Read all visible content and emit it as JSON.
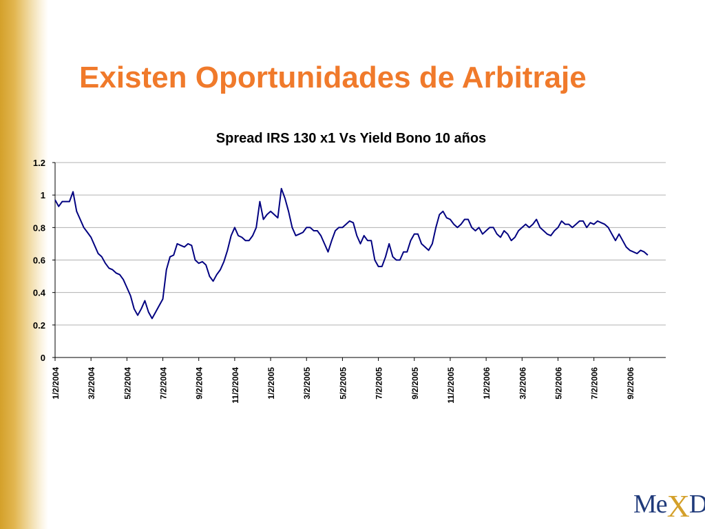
{
  "slide": {
    "title": "Existen Oportunidades de Arbitraje"
  },
  "logo": {
    "text_a": "Me",
    "text_x": "X",
    "text_b": "Der"
  },
  "chart_data": {
    "type": "line",
    "title": "Spread IRS 130 x1 Vs Yield Bono 10 años",
    "xlabel": "",
    "ylabel": "",
    "ylim": [
      0,
      1.2
    ],
    "yticks": [
      "0",
      "0.2",
      "0.4",
      "0.6",
      "0.8",
      "1",
      "1.2"
    ],
    "grid": "horizontal",
    "categories": [
      "1/2/2004",
      "3/2/2004",
      "5/2/2004",
      "7/2/2004",
      "9/2/2004",
      "11/2/2004",
      "1/2/2005",
      "3/2/2005",
      "5/2/2005",
      "7/2/2005",
      "9/2/2005",
      "11/2/2005",
      "1/2/2006",
      "3/2/2006",
      "5/2/2006",
      "7/2/2006",
      "9/2/2006"
    ],
    "series": [
      {
        "color": "#000080",
        "points": [
          [
            0.0,
            0.97
          ],
          [
            0.1,
            0.93
          ],
          [
            0.2,
            0.96
          ],
          [
            0.3,
            0.96
          ],
          [
            0.4,
            0.96
          ],
          [
            0.5,
            1.02
          ],
          [
            0.6,
            0.9
          ],
          [
            0.7,
            0.85
          ],
          [
            0.8,
            0.8
          ],
          [
            0.9,
            0.77
          ],
          [
            1.0,
            0.74
          ],
          [
            1.1,
            0.69
          ],
          [
            1.2,
            0.64
          ],
          [
            1.3,
            0.62
          ],
          [
            1.4,
            0.58
          ],
          [
            1.5,
            0.55
          ],
          [
            1.6,
            0.54
          ],
          [
            1.7,
            0.52
          ],
          [
            1.8,
            0.51
          ],
          [
            1.9,
            0.48
          ],
          [
            2.0,
            0.43
          ],
          [
            2.1,
            0.38
          ],
          [
            2.2,
            0.3
          ],
          [
            2.3,
            0.26
          ],
          [
            2.4,
            0.3
          ],
          [
            2.5,
            0.35
          ],
          [
            2.6,
            0.28
          ],
          [
            2.7,
            0.24
          ],
          [
            2.8,
            0.28
          ],
          [
            2.9,
            0.32
          ],
          [
            3.0,
            0.36
          ],
          [
            3.1,
            0.54
          ],
          [
            3.2,
            0.62
          ],
          [
            3.3,
            0.63
          ],
          [
            3.4,
            0.7
          ],
          [
            3.5,
            0.69
          ],
          [
            3.6,
            0.68
          ],
          [
            3.7,
            0.7
          ],
          [
            3.8,
            0.69
          ],
          [
            3.9,
            0.6
          ],
          [
            4.0,
            0.58
          ],
          [
            4.1,
            0.59
          ],
          [
            4.2,
            0.57
          ],
          [
            4.3,
            0.5
          ],
          [
            4.4,
            0.47
          ],
          [
            4.5,
            0.51
          ],
          [
            4.6,
            0.54
          ],
          [
            4.7,
            0.59
          ],
          [
            4.8,
            0.66
          ],
          [
            4.9,
            0.75
          ],
          [
            5.0,
            0.8
          ],
          [
            5.1,
            0.75
          ],
          [
            5.2,
            0.74
          ],
          [
            5.3,
            0.72
          ],
          [
            5.4,
            0.72
          ],
          [
            5.5,
            0.75
          ],
          [
            5.6,
            0.8
          ],
          [
            5.7,
            0.96
          ],
          [
            5.8,
            0.85
          ],
          [
            5.9,
            0.88
          ],
          [
            6.0,
            0.9
          ],
          [
            6.1,
            0.88
          ],
          [
            6.2,
            0.86
          ],
          [
            6.3,
            1.04
          ],
          [
            6.4,
            0.98
          ],
          [
            6.5,
            0.9
          ],
          [
            6.6,
            0.8
          ],
          [
            6.7,
            0.75
          ],
          [
            6.8,
            0.76
          ],
          [
            6.9,
            0.77
          ],
          [
            7.0,
            0.8
          ],
          [
            7.1,
            0.8
          ],
          [
            7.2,
            0.78
          ],
          [
            7.3,
            0.78
          ],
          [
            7.4,
            0.75
          ],
          [
            7.5,
            0.7
          ],
          [
            7.6,
            0.65
          ],
          [
            7.7,
            0.72
          ],
          [
            7.8,
            0.78
          ],
          [
            7.9,
            0.8
          ],
          [
            8.0,
            0.8
          ],
          [
            8.1,
            0.82
          ],
          [
            8.2,
            0.84
          ],
          [
            8.3,
            0.83
          ],
          [
            8.4,
            0.75
          ],
          [
            8.5,
            0.7
          ],
          [
            8.6,
            0.75
          ],
          [
            8.7,
            0.72
          ],
          [
            8.8,
            0.72
          ],
          [
            8.9,
            0.6
          ],
          [
            9.0,
            0.56
          ],
          [
            9.1,
            0.56
          ],
          [
            9.2,
            0.62
          ],
          [
            9.3,
            0.7
          ],
          [
            9.4,
            0.62
          ],
          [
            9.5,
            0.6
          ],
          [
            9.6,
            0.6
          ],
          [
            9.7,
            0.65
          ],
          [
            9.8,
            0.65
          ],
          [
            9.9,
            0.72
          ],
          [
            10.0,
            0.76
          ],
          [
            10.1,
            0.76
          ],
          [
            10.2,
            0.7
          ],
          [
            10.3,
            0.68
          ],
          [
            10.4,
            0.66
          ],
          [
            10.5,
            0.7
          ],
          [
            10.6,
            0.8
          ],
          [
            10.7,
            0.88
          ],
          [
            10.8,
            0.9
          ],
          [
            10.9,
            0.86
          ],
          [
            11.0,
            0.85
          ],
          [
            11.1,
            0.82
          ],
          [
            11.2,
            0.8
          ],
          [
            11.3,
            0.82
          ],
          [
            11.4,
            0.85
          ],
          [
            11.5,
            0.85
          ],
          [
            11.6,
            0.8
          ],
          [
            11.7,
            0.78
          ],
          [
            11.8,
            0.8
          ],
          [
            11.9,
            0.76
          ],
          [
            12.0,
            0.78
          ],
          [
            12.1,
            0.8
          ],
          [
            12.2,
            0.8
          ],
          [
            12.3,
            0.76
          ],
          [
            12.4,
            0.74
          ],
          [
            12.5,
            0.78
          ],
          [
            12.6,
            0.76
          ],
          [
            12.7,
            0.72
          ],
          [
            12.8,
            0.74
          ],
          [
            12.9,
            0.78
          ],
          [
            13.0,
            0.8
          ],
          [
            13.1,
            0.82
          ],
          [
            13.2,
            0.8
          ],
          [
            13.3,
            0.82
          ],
          [
            13.4,
            0.85
          ],
          [
            13.5,
            0.8
          ],
          [
            13.6,
            0.78
          ],
          [
            13.7,
            0.76
          ],
          [
            13.8,
            0.75
          ],
          [
            13.9,
            0.78
          ],
          [
            14.0,
            0.8
          ],
          [
            14.1,
            0.84
          ],
          [
            14.2,
            0.82
          ],
          [
            14.3,
            0.82
          ],
          [
            14.4,
            0.8
          ],
          [
            14.5,
            0.82
          ],
          [
            14.6,
            0.84
          ],
          [
            14.7,
            0.84
          ],
          [
            14.8,
            0.8
          ],
          [
            14.9,
            0.83
          ],
          [
            15.0,
            0.82
          ],
          [
            15.1,
            0.84
          ],
          [
            15.2,
            0.83
          ],
          [
            15.3,
            0.82
          ],
          [
            15.4,
            0.8
          ],
          [
            15.5,
            0.76
          ],
          [
            15.6,
            0.72
          ],
          [
            15.7,
            0.76
          ],
          [
            15.8,
            0.72
          ],
          [
            15.9,
            0.68
          ],
          [
            16.0,
            0.66
          ],
          [
            16.1,
            0.65
          ],
          [
            16.2,
            0.64
          ],
          [
            16.3,
            0.66
          ],
          [
            16.4,
            0.65
          ],
          [
            16.5,
            0.63
          ]
        ]
      }
    ]
  }
}
